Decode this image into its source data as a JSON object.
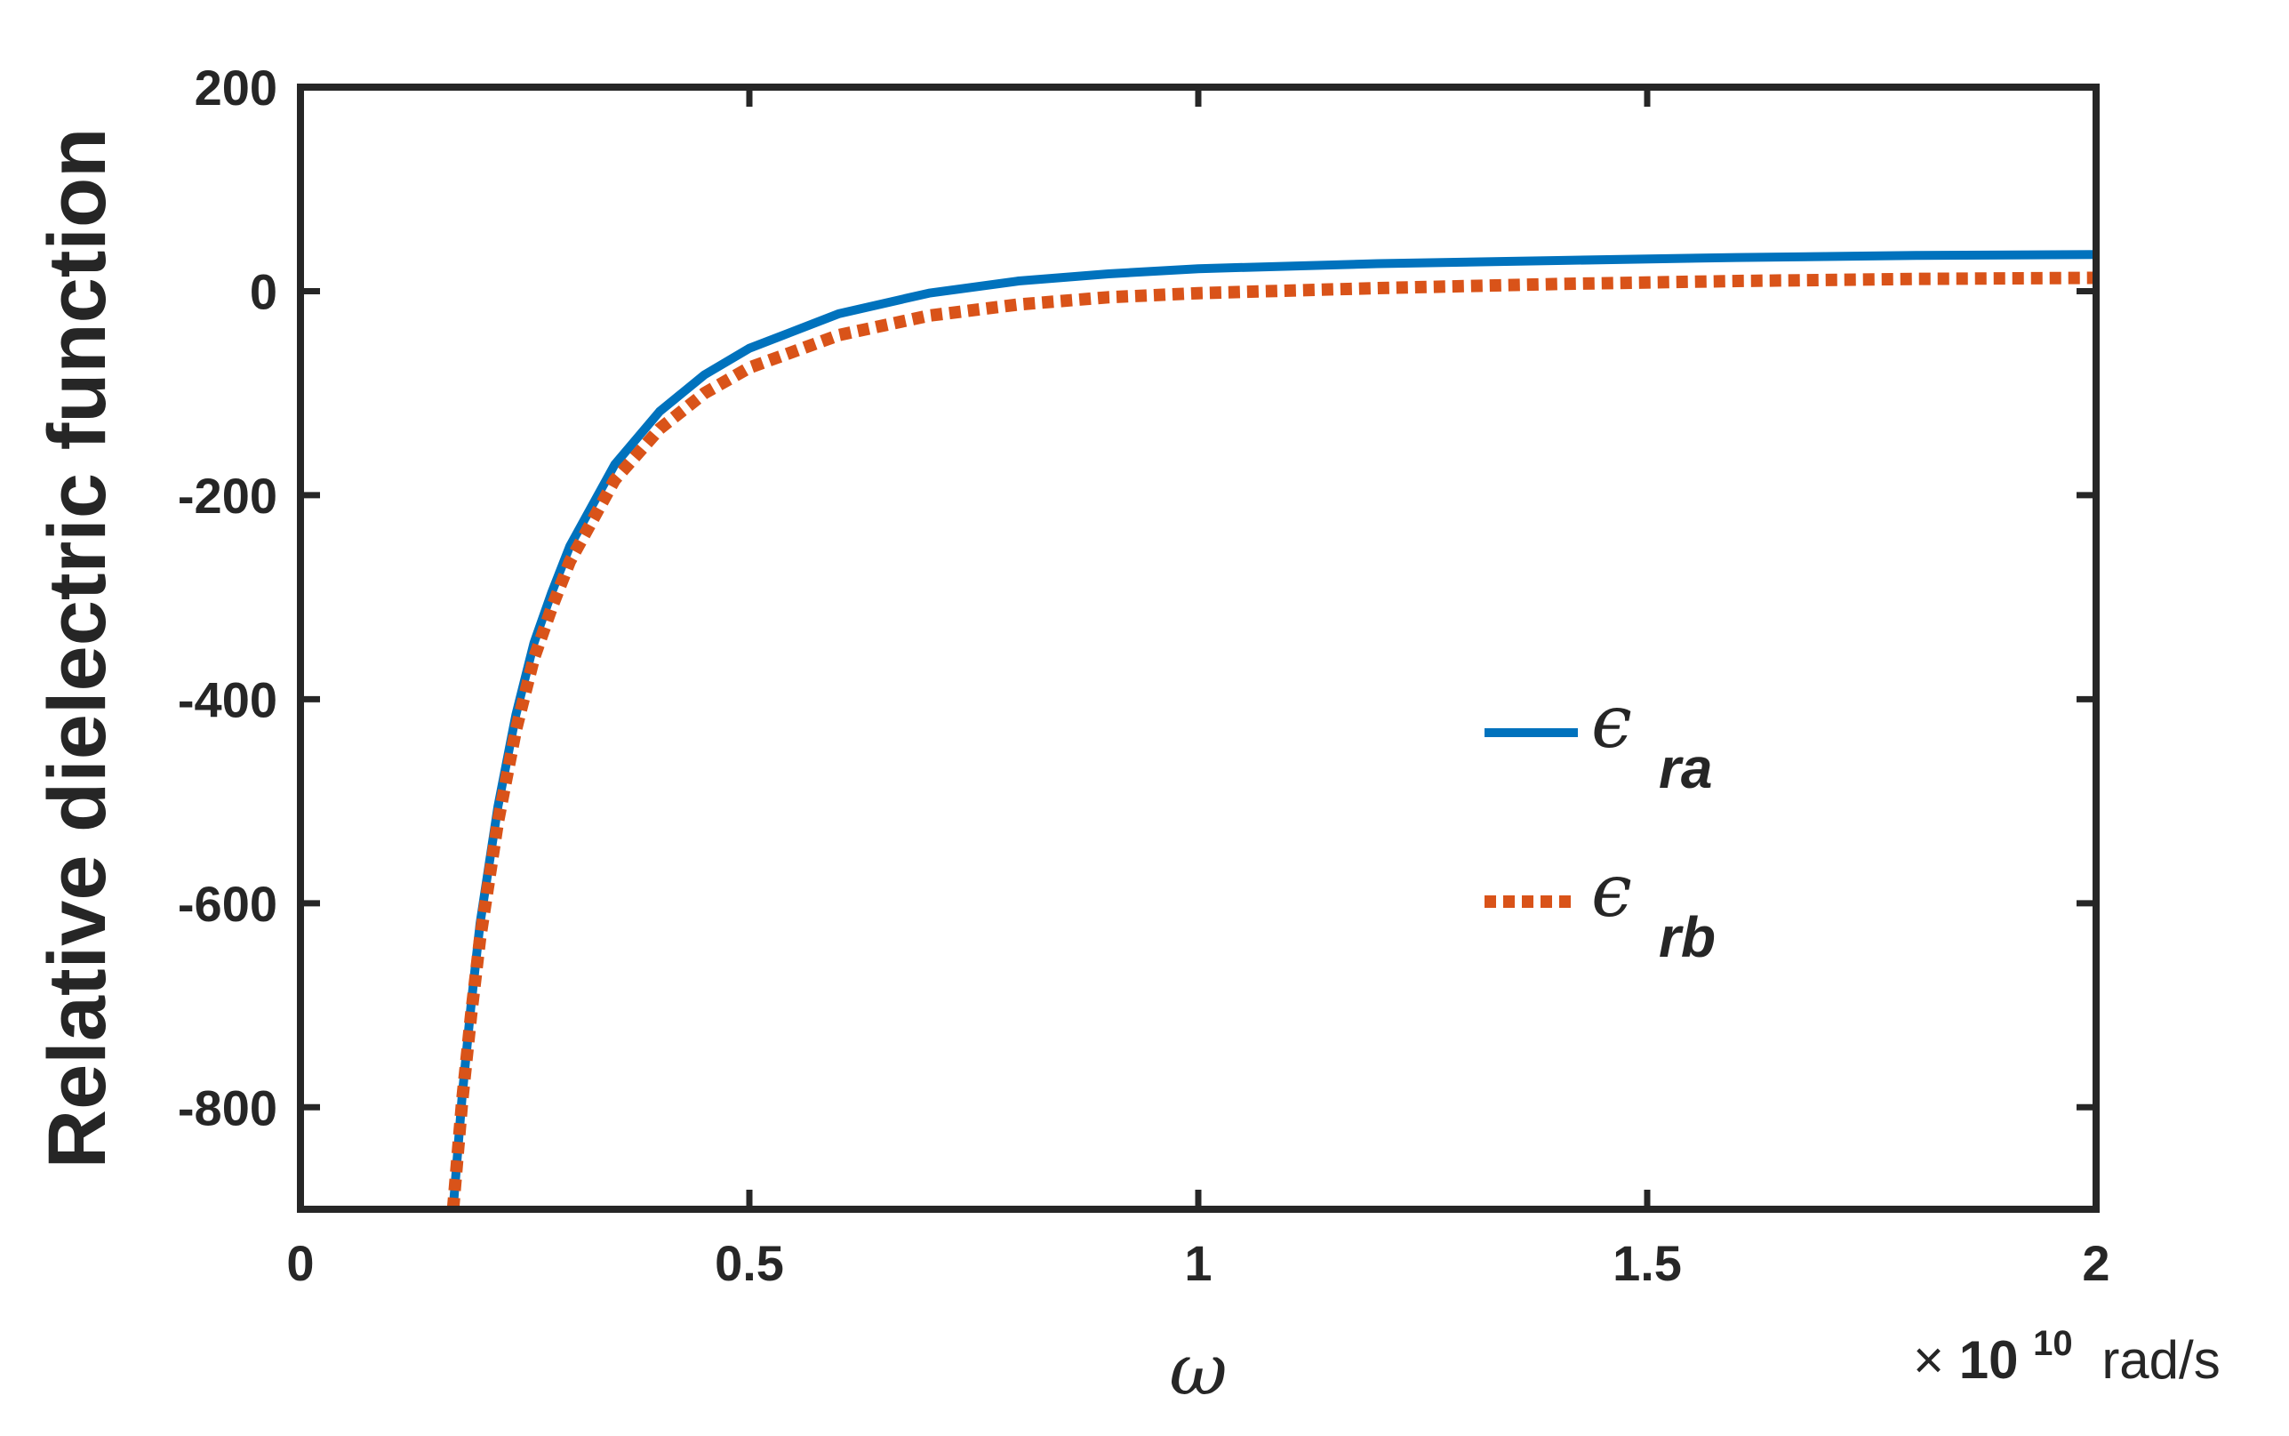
{
  "chart_data": {
    "type": "line",
    "ylabel": "Relative dielectric function",
    "xlabel": "ω",
    "x_exponent_prefix": "×",
    "x_exponent_base": "10",
    "x_exponent_power": "10",
    "x_unit": "rad/s",
    "xlim": [
      0,
      2
    ],
    "ylim": [
      -900,
      200
    ],
    "x_ticks": [
      0,
      0.5,
      1,
      1.5,
      2
    ],
    "x_tick_labels": [
      "0",
      "0.5",
      "1",
      "1.5",
      "2"
    ],
    "y_ticks": [
      200,
      0,
      -200,
      -400,
      -600,
      -800
    ],
    "y_tick_labels": [
      "200",
      "0",
      "-200",
      "-400",
      "-600",
      "-800"
    ],
    "grid": false,
    "legend_position": "right-center",
    "series": [
      {
        "name": "ϵra",
        "symbol": "ϵ",
        "subscript": "ra",
        "color": "#0072BD",
        "style": "solid",
        "x": [
          0.17,
          0.18,
          0.19,
          0.2,
          0.22,
          0.24,
          0.26,
          0.28,
          0.3,
          0.35,
          0.4,
          0.45,
          0.5,
          0.6,
          0.7,
          0.8,
          0.9,
          1.0,
          1.2,
          1.4,
          1.6,
          1.8,
          2.0
        ],
        "y": [
          -900,
          -790,
          -700,
          -620,
          -505,
          -415,
          -345,
          -295,
          -250,
          -170,
          -118,
          -82,
          -56,
          -22,
          -2,
          10,
          17,
          22,
          27,
          30,
          33,
          35,
          36
        ]
      },
      {
        "name": "ϵrb",
        "symbol": "ϵ",
        "subscript": "rb",
        "color": "#D95319",
        "style": "dotted",
        "x": [
          0.17,
          0.18,
          0.19,
          0.2,
          0.22,
          0.24,
          0.26,
          0.28,
          0.3,
          0.35,
          0.4,
          0.45,
          0.5,
          0.6,
          0.7,
          0.8,
          0.9,
          1.0,
          1.2,
          1.4,
          1.6,
          1.8,
          2.0
        ],
        "y": [
          -900,
          -795,
          -710,
          -635,
          -520,
          -430,
          -360,
          -310,
          -265,
          -185,
          -135,
          -100,
          -75,
          -43,
          -24,
          -13,
          -6,
          -2,
          3,
          7,
          10,
          12,
          13
        ]
      }
    ]
  }
}
